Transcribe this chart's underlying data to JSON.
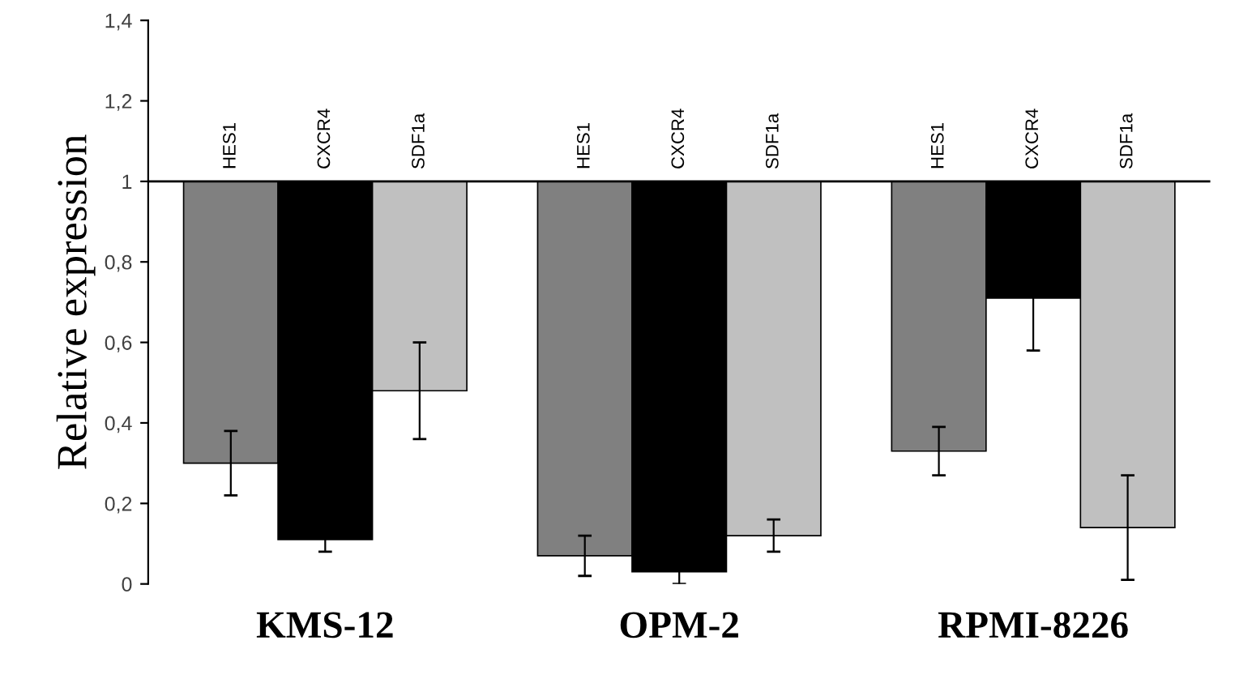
{
  "chart_data": {
    "type": "bar",
    "ylabel": "Relative expression",
    "categories": [
      "KMS-12",
      "OPM-2",
      "RPMI-8226"
    ],
    "series": [
      {
        "name": "HES1",
        "color": "#808080",
        "base": [
          1,
          1,
          1
        ],
        "values": [
          -0.7,
          -0.93,
          -0.67
        ],
        "errors": [
          0.08,
          0.05,
          0.06
        ]
      },
      {
        "name": "CXCR4",
        "color": "#000000",
        "base": [
          1,
          1,
          1
        ],
        "values": [
          -0.89,
          -0.97,
          -0.29
        ],
        "errors": [
          0.03,
          0.03,
          0.13
        ]
      },
      {
        "name": "SDF1a",
        "color": "#c0c0c0",
        "base": [
          1,
          1,
          1
        ],
        "values": [
          -0.52,
          -0.88,
          -0.86
        ],
        "errors": [
          0.12,
          0.04,
          0.13
        ]
      }
    ],
    "ylim": [
      0,
      1.4
    ],
    "yticks": [
      0,
      {
        "value": 0.2,
        "label": "0,2"
      },
      {
        "value": 0.4,
        "label": "0,4"
      },
      {
        "value": 0.6,
        "label": "0,6"
      },
      {
        "value": 0.8,
        "label": "0,8"
      },
      1,
      {
        "value": 1.2,
        "label": "1,2"
      },
      {
        "value": 1.4,
        "label": "1,4"
      }
    ],
    "ref_lines": [
      {
        "axis": "y",
        "value": 1,
        "label": null,
        "color": "#000000"
      }
    ],
    "grid": false,
    "legend": false
  }
}
